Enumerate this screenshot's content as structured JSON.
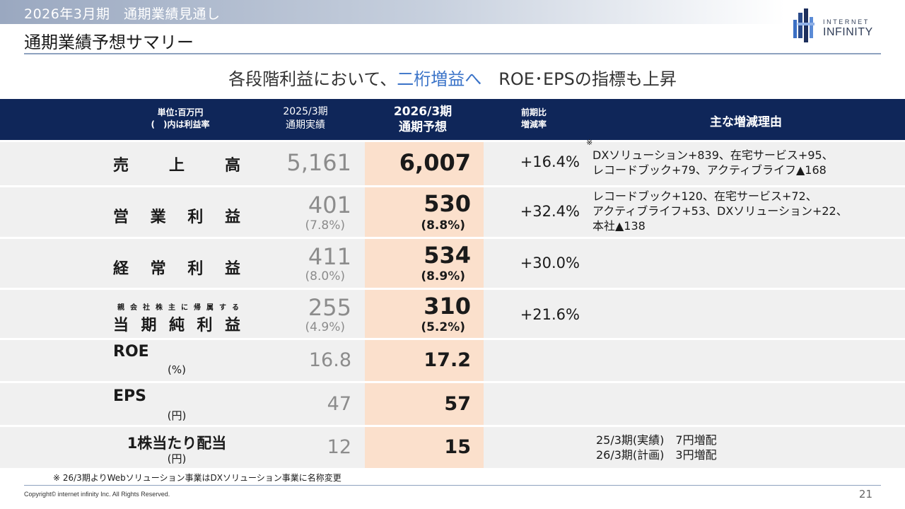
{
  "header": {
    "band_title": "2026年3月期　通期業績見通し",
    "page_title": "通期業績予想サマリー",
    "logo_line1": "INTERNET",
    "logo_line2": "INFINITY"
  },
  "headline": {
    "pre": "各段階利益において、",
    "highlight": "二桁増益へ",
    "post": "　ROE･EPSの指標も上昇"
  },
  "table": {
    "head": {
      "unit_line1": "単位:百万円",
      "unit_line2": "(　)内は利益率",
      "prev_line1": "2025/3期",
      "prev_line2": "通期実績",
      "cur_line1": "2026/3期",
      "cur_line2": "通期予想",
      "rate_line1": "前期比",
      "rate_line2": "増減率",
      "reason": "主な増減理由"
    },
    "rows": {
      "sales": {
        "label": "売上高",
        "prev": "5,161",
        "cur": "6,007",
        "rate": "+16.4%",
        "mark": "※",
        "reason_line1": "DXソリューション+839、在宅サービス+95、",
        "reason_line2": "レコードブック+79、アクティブライフ▲168"
      },
      "op": {
        "label": "営業利益",
        "prev": "401",
        "prev_margin": "(7.8%)",
        "cur": "530",
        "cur_margin": "(8.8%)",
        "rate": "+32.4%",
        "reason_line1": "レコードブック+120、在宅サービス+72、",
        "reason_line2": "アクティブライフ+53、DXソリューション+22、",
        "reason_line3": "本社▲138"
      },
      "ord": {
        "label": "経常利益",
        "prev": "411",
        "prev_margin": "(8.0%)",
        "cur": "534",
        "cur_margin": "(8.9%)",
        "rate": "+30.0%"
      },
      "net": {
        "label_small": "親会社株主に帰属する",
        "label": "当期純利益",
        "prev": "255",
        "prev_margin": "(4.9%)",
        "cur": "310",
        "cur_margin": "(5.2%)",
        "rate": "+21.6%"
      },
      "roe": {
        "label": "ROE",
        "unit": "(%)",
        "prev": "16.8",
        "cur": "17.2"
      },
      "eps": {
        "label": "EPS",
        "unit": "(円)",
        "prev": "47",
        "cur": "57"
      },
      "div": {
        "label": "1株当たり配当",
        "unit": "(円)",
        "prev": "12",
        "cur": "15",
        "reason_line1": "25/3期(実績)　7円増配",
        "reason_line2": "26/3期(計画)　3円増配"
      }
    }
  },
  "footnote": "※ 26/3期よりWebソリューション事業はDXソリューション事業に名称変更",
  "copyright": "Copyright© internet infinity Inc. All Rights Reserved.",
  "page_number": "21",
  "colors": {
    "header_navy": "#0f2659",
    "forecast_highlight": "#fbe0cc",
    "row_gray": "#f0f0f0",
    "accent_blue": "#3a73c8"
  }
}
